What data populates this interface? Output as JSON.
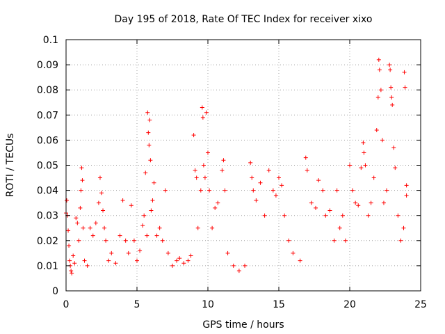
{
  "chart_data": {
    "type": "scatter",
    "title": "Day 195 of 2018, Rate Of TEC Index for receiver xixo",
    "xlabel": "GPS time / hours",
    "ylabel": "ROTI / TECUs",
    "xlim": [
      0,
      25
    ],
    "ylim": [
      0,
      0.1
    ],
    "x_ticks": [
      "0",
      "5",
      "10",
      "15",
      "20",
      "25"
    ],
    "y_ticks": [
      "0",
      "0.01",
      "0.02",
      "0.03",
      "0.04",
      "0.05",
      "0.06",
      "0.07",
      "0.08",
      "0.09",
      "0.1"
    ],
    "grid": true,
    "legend": "none",
    "marker": "+",
    "colors": {
      "points": "#ff0000",
      "grid": "#a0a0a0",
      "axes": "#000000"
    },
    "series": [
      {
        "points": [
          [
            0.0,
            0.031
          ],
          [
            0.05,
            0.036
          ],
          [
            0.1,
            0.03
          ],
          [
            0.15,
            0.024
          ],
          [
            0.2,
            0.018
          ],
          [
            0.25,
            0.012
          ],
          [
            0.3,
            0.01
          ],
          [
            0.35,
            0.008
          ],
          [
            0.4,
            0.007
          ],
          [
            0.5,
            0.014
          ],
          [
            0.6,
            0.011
          ],
          [
            0.7,
            0.029
          ],
          [
            0.8,
            0.027
          ],
          [
            0.9,
            0.02
          ],
          [
            1.0,
            0.033
          ],
          [
            1.05,
            0.04
          ],
          [
            1.1,
            0.049
          ],
          [
            1.15,
            0.044
          ],
          [
            1.2,
            0.025
          ],
          [
            1.3,
            0.012
          ],
          [
            1.5,
            0.01
          ],
          [
            1.7,
            0.025
          ],
          [
            1.9,
            0.022
          ],
          [
            2.1,
            0.027
          ],
          [
            2.3,
            0.035
          ],
          [
            2.4,
            0.045
          ],
          [
            2.5,
            0.039
          ],
          [
            2.6,
            0.032
          ],
          [
            2.7,
            0.025
          ],
          [
            2.8,
            0.02
          ],
          [
            3.0,
            0.012
          ],
          [
            3.2,
            0.015
          ],
          [
            3.5,
            0.011
          ],
          [
            3.8,
            0.022
          ],
          [
            4.0,
            0.036
          ],
          [
            4.2,
            0.02
          ],
          [
            4.4,
            0.015
          ],
          [
            4.6,
            0.034
          ],
          [
            4.8,
            0.02
          ],
          [
            5.0,
            0.012
          ],
          [
            5.2,
            0.016
          ],
          [
            5.4,
            0.026
          ],
          [
            5.5,
            0.03
          ],
          [
            5.6,
            0.047
          ],
          [
            5.7,
            0.022
          ],
          [
            5.75,
            0.071
          ],
          [
            5.8,
            0.063
          ],
          [
            5.85,
            0.058
          ],
          [
            5.9,
            0.068
          ],
          [
            5.95,
            0.052
          ],
          [
            6.0,
            0.032
          ],
          [
            6.1,
            0.036
          ],
          [
            6.2,
            0.043
          ],
          [
            6.4,
            0.022
          ],
          [
            6.6,
            0.025
          ],
          [
            6.8,
            0.02
          ],
          [
            7.0,
            0.04
          ],
          [
            7.2,
            0.015
          ],
          [
            7.5,
            0.01
          ],
          [
            7.8,
            0.012
          ],
          [
            8.0,
            0.013
          ],
          [
            8.3,
            0.011
          ],
          [
            8.6,
            0.012
          ],
          [
            8.8,
            0.014
          ],
          [
            9.0,
            0.062
          ],
          [
            9.1,
            0.048
          ],
          [
            9.2,
            0.045
          ],
          [
            9.3,
            0.025
          ],
          [
            9.5,
            0.04
          ],
          [
            9.6,
            0.073
          ],
          [
            9.65,
            0.069
          ],
          [
            9.7,
            0.05
          ],
          [
            9.8,
            0.045
          ],
          [
            9.9,
            0.071
          ],
          [
            10.0,
            0.055
          ],
          [
            10.1,
            0.04
          ],
          [
            10.3,
            0.025
          ],
          [
            10.5,
            0.033
          ],
          [
            10.7,
            0.035
          ],
          [
            11.0,
            0.048
          ],
          [
            11.1,
            0.052
          ],
          [
            11.2,
            0.04
          ],
          [
            11.4,
            0.015
          ],
          [
            11.8,
            0.01
          ],
          [
            12.2,
            0.008
          ],
          [
            12.6,
            0.01
          ],
          [
            13.0,
            0.051
          ],
          [
            13.1,
            0.045
          ],
          [
            13.2,
            0.04
          ],
          [
            13.4,
            0.036
          ],
          [
            13.7,
            0.043
          ],
          [
            14.0,
            0.03
          ],
          [
            14.3,
            0.048
          ],
          [
            14.6,
            0.04
          ],
          [
            14.8,
            0.038
          ],
          [
            15.0,
            0.045
          ],
          [
            15.2,
            0.042
          ],
          [
            15.4,
            0.03
          ],
          [
            15.7,
            0.02
          ],
          [
            16.0,
            0.015
          ],
          [
            16.5,
            0.012
          ],
          [
            16.9,
            0.053
          ],
          [
            17.0,
            0.048
          ],
          [
            17.3,
            0.035
          ],
          [
            17.6,
            0.033
          ],
          [
            17.8,
            0.044
          ],
          [
            18.1,
            0.04
          ],
          [
            18.3,
            0.03
          ],
          [
            18.6,
            0.032
          ],
          [
            18.9,
            0.02
          ],
          [
            19.1,
            0.04
          ],
          [
            19.3,
            0.025
          ],
          [
            19.5,
            0.03
          ],
          [
            19.7,
            0.02
          ],
          [
            20.0,
            0.05
          ],
          [
            20.2,
            0.04
          ],
          [
            20.4,
            0.035
          ],
          [
            20.6,
            0.034
          ],
          [
            20.8,
            0.049
          ],
          [
            20.95,
            0.059
          ],
          [
            21.0,
            0.055
          ],
          [
            21.1,
            0.05
          ],
          [
            21.3,
            0.03
          ],
          [
            21.5,
            0.035
          ],
          [
            21.7,
            0.045
          ],
          [
            21.9,
            0.064
          ],
          [
            22.0,
            0.077
          ],
          [
            22.05,
            0.092
          ],
          [
            22.1,
            0.088
          ],
          [
            22.2,
            0.08
          ],
          [
            22.3,
            0.06
          ],
          [
            22.4,
            0.035
          ],
          [
            22.6,
            0.04
          ],
          [
            22.8,
            0.09
          ],
          [
            22.85,
            0.088
          ],
          [
            22.9,
            0.081
          ],
          [
            22.95,
            0.077
          ],
          [
            23.0,
            0.074
          ],
          [
            23.1,
            0.057
          ],
          [
            23.2,
            0.049
          ],
          [
            23.4,
            0.03
          ],
          [
            23.6,
            0.02
          ],
          [
            23.8,
            0.025
          ],
          [
            23.85,
            0.087
          ],
          [
            23.9,
            0.081
          ],
          [
            24.0,
            0.042
          ],
          [
            24.0,
            0.038
          ]
        ]
      }
    ]
  }
}
